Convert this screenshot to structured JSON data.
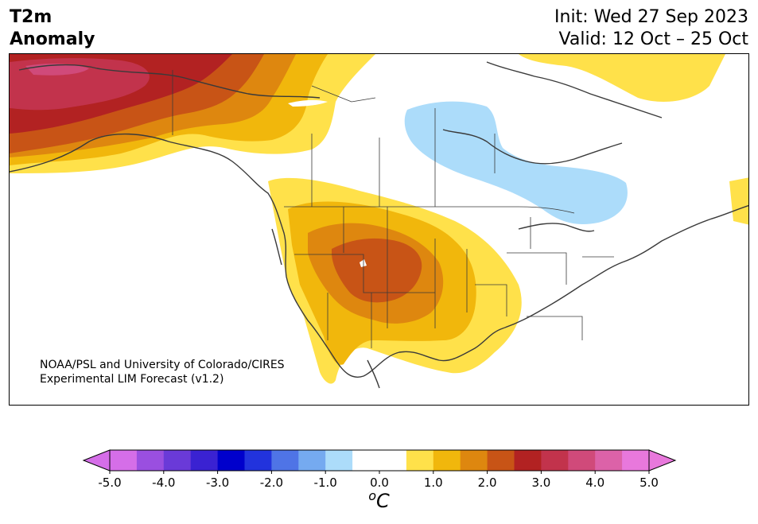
{
  "title": {
    "left": "T2m\nAnomaly",
    "right": "Init: Wed 27 Sep 2023\nValid: 12 Oct – 25 Oct"
  },
  "credit": "NOAA/PSL and University of Colorado/CIRES\nExperimental LIM Forecast (v1.2)",
  "colorbar": {
    "ticks": [
      "-5.0",
      "-4.0",
      "-3.0",
      "-2.0",
      "-1.0",
      "0.0",
      "1.0",
      "2.0",
      "3.0",
      "4.0",
      "5.0"
    ],
    "colors": [
      "#d56ee8",
      "#9a4fe0",
      "#6a3ad8",
      "#3a22d2",
      "#0000cc",
      "#2233dd",
      "#4f74e6",
      "#75aaf0",
      "#acdcfa",
      "#ffffff",
      "#ffffff",
      "#ffe14a",
      "#f1b70c",
      "#de870f",
      "#c85416",
      "#b22222",
      "#c2334c",
      "#d04a7a",
      "#dc62a8",
      "#e878dc"
    ],
    "units": "oC"
  },
  "legend_colors": {
    "cold_light": "#acdcfa",
    "warm_1": "#ffe14a",
    "warm_2": "#f1b70c",
    "warm_3": "#de870f",
    "warm_4": "#c85416",
    "warm_5": "#b22222",
    "warm_6": "#c2334c",
    "warm_7": "#d04a7a"
  }
}
